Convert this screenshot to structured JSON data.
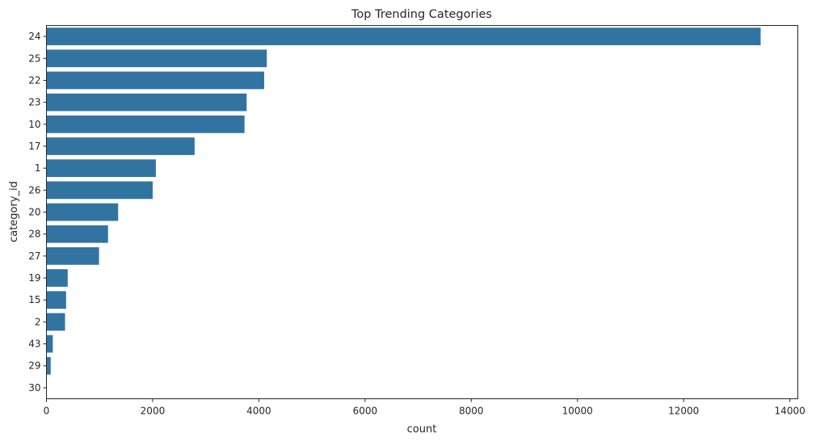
{
  "chart_data": {
    "type": "bar",
    "orientation": "horizontal",
    "title": "Top Trending Categories",
    "xlabel": "count",
    "ylabel": "category_id",
    "categories": [
      "24",
      "25",
      "22",
      "23",
      "10",
      "17",
      "1",
      "26",
      "20",
      "28",
      "27",
      "19",
      "15",
      "2",
      "43",
      "29",
      "30"
    ],
    "values": [
      13450,
      4150,
      4100,
      3770,
      3730,
      2790,
      2060,
      2000,
      1350,
      1160,
      990,
      400,
      370,
      350,
      120,
      80,
      0
    ],
    "xlim": [
      0,
      14150
    ],
    "xticks": [
      0,
      2000,
      4000,
      6000,
      8000,
      10000,
      12000,
      14000
    ],
    "xtick_labels": [
      "0",
      "2000",
      "4000",
      "6000",
      "8000",
      "10000",
      "12000",
      "14000"
    ],
    "grid": false,
    "bar_color": "#3274a1"
  }
}
